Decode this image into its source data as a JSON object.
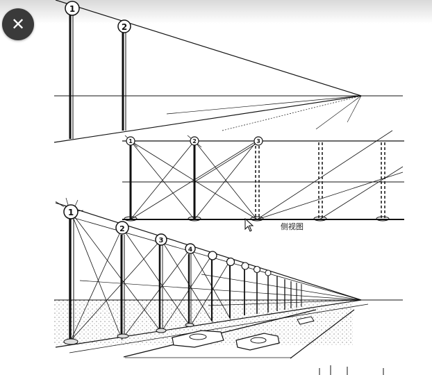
{
  "viewer": {
    "close_glyph": "✕",
    "caption": "侧视图"
  },
  "diagram": {
    "panel1_markers": [
      "1",
      "2"
    ],
    "panel2_markers": [
      "1",
      "2",
      "3"
    ],
    "panel3_markers": [
      "1",
      "2",
      "3",
      "4"
    ]
  }
}
